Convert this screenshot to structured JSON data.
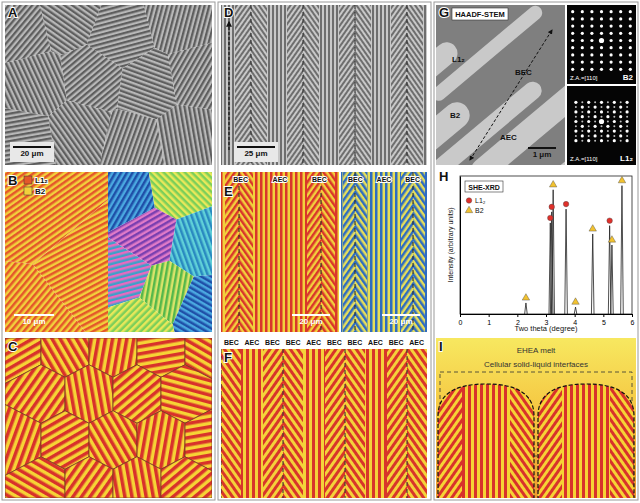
{
  "panels": {
    "a": {
      "label": "A",
      "scale_bar": "20 μm"
    },
    "b": {
      "label": "B",
      "phases": [
        "L1₂",
        "B2"
      ],
      "scale_bar": "10 μm"
    },
    "c": {
      "label": "C"
    },
    "d": {
      "label": "D",
      "scale_bar": "25 μm"
    },
    "e": {
      "label": "E",
      "left": {
        "regions": [
          "BEC",
          "AEC",
          "BEC"
        ],
        "scale_bar": "20 μm"
      },
      "right": {
        "regions": [
          "BEC",
          "AEC",
          "BEC"
        ],
        "scale_bar": "20 μm"
      }
    },
    "f": {
      "label": "F",
      "regions": [
        "BEC",
        "AEC",
        "BEC",
        "BEC",
        "AEC",
        "BEC",
        "BEC",
        "AEC",
        "BEC",
        "AEC"
      ]
    },
    "g": {
      "label": "G",
      "title": "HAADF-STEM",
      "phases": [
        "L1₂",
        "BEC",
        "B2",
        "AEC"
      ],
      "scale_bar": "1 μm",
      "patterns": [
        {
          "phase": "B2",
          "zone_axis": "Z.A.=[110]"
        },
        {
          "phase": "L1₂",
          "zone_axis": "Z.A.=[110]"
        }
      ]
    },
    "h": {
      "label": "H"
    },
    "i": {
      "label": "I",
      "melt": "EHEA melt",
      "interface": "Cellular solid-liquid interfaces"
    }
  },
  "chart_data": {
    "type": "stem",
    "title": "SHE-XRD",
    "x_label": "Two theta (degree)",
    "y_label": "Intensity (arbitrary units)",
    "xlim": [
      0,
      6
    ],
    "xticks": [
      0,
      1,
      2,
      3,
      4,
      5,
      6
    ],
    "ylim": [
      0,
      100
    ],
    "tick_labels": "x",
    "grid": false,
    "legend": "upper-left",
    "series": [
      {
        "name": "L1₂",
        "color": "#e0302a",
        "marker": "circle",
        "x": [
          3.15,
          3.2,
          3.7,
          5.22
        ],
        "values": [
          66,
          74,
          76,
          64
        ]
      },
      {
        "name": "B2",
        "color": "#f2c230",
        "marker": "triangle",
        "x": [
          2.3,
          3.25,
          4.03,
          4.63,
          5.3,
          5.65
        ],
        "values": [
          8,
          90,
          5,
          58,
          50,
          93
        ]
      }
    ]
  }
}
